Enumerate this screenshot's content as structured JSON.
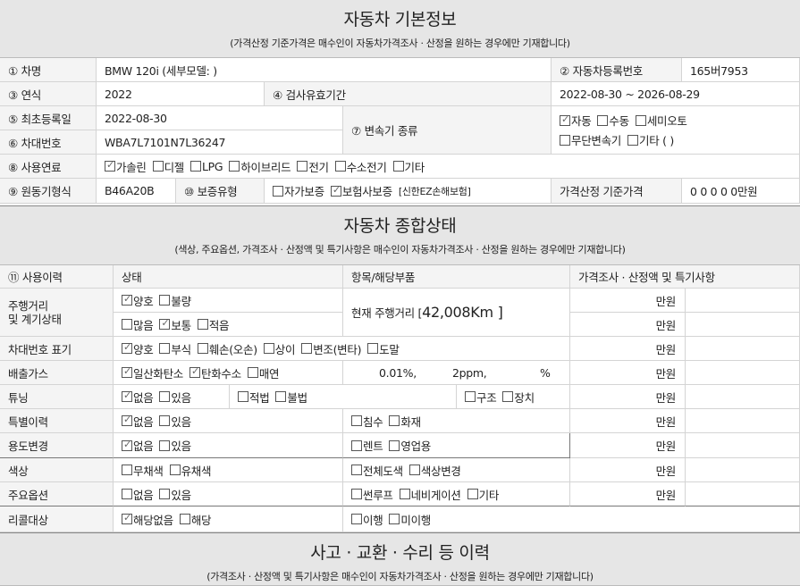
{
  "basic": {
    "title": "자동차 기본정보",
    "subtitle": "(가격산정 기준가격은 매수인이 자동차가격조사 · 산정을 원하는 경우에만 기재합니다)",
    "car_name_label": "① 차명",
    "car_name": "BMW 120i (세부모델: )",
    "reg_no_label": "② 자동차등록번호",
    "reg_no": "165버7953",
    "year_label": "③ 연식",
    "year": "2022",
    "inspect_label": "④ 검사유효기간",
    "inspect": "2022-08-30 ~ 2026-08-29",
    "first_reg_label": "⑤ 최초등록일",
    "first_reg": "2022-08-30",
    "vin_label": "⑥ 차대번호",
    "vin": "WBA7L7101N7L36247",
    "trans_label": "⑦ 변속기 종류",
    "trans1": [
      {
        "label": "자동",
        "checked": true
      },
      {
        "label": "수동",
        "checked": false
      },
      {
        "label": "세미오토",
        "checked": false
      }
    ],
    "trans2": [
      {
        "label": "무단변속기",
        "checked": false
      },
      {
        "label": "기타 (        )",
        "checked": false
      }
    ],
    "fuel_label": "⑧ 사용연료",
    "fuel": [
      {
        "label": "가솔린",
        "checked": true
      },
      {
        "label": "디젤",
        "checked": false
      },
      {
        "label": "LPG",
        "checked": false
      },
      {
        "label": "하이브리드",
        "checked": false
      },
      {
        "label": "전기",
        "checked": false
      },
      {
        "label": "수소전기",
        "checked": false
      },
      {
        "label": "기타",
        "checked": false
      }
    ],
    "engine_label": "⑨ 원동기형식",
    "engine": "B46A20B",
    "warranty_label": "⑩ 보증유형",
    "warranty": [
      {
        "label": "자가보증",
        "checked": false
      },
      {
        "label": "보험사보증",
        "checked": true
      }
    ],
    "insurer": "[신한EZ손해보험]",
    "price_label": "가격산정 기준가격",
    "price": "0 0 0 0 0만원"
  },
  "status": {
    "title": "자동차 종합상태",
    "subtitle": "(색상, 주요옵션, 가격조사 · 산정액 및 특기사항은 매수인이 자동차가격조사 · 산정을 원하는 경우에만 기재합니다)",
    "headers": [
      "⑪ 사용이력",
      "상태",
      "항목/해당부품",
      "가격조사 · 산정액 및 특기사항"
    ],
    "unit": "만원",
    "mileage_label": "주행거리\n및 계기상태",
    "mileage1": [
      {
        "label": "양호",
        "checked": true
      },
      {
        "label": "불량",
        "checked": false
      }
    ],
    "mileage2": [
      {
        "label": "많음",
        "checked": false
      },
      {
        "label": "보통",
        "checked": true
      },
      {
        "label": "적음",
        "checked": false
      }
    ],
    "mileage_text": "현재 주행거리 [ ",
    "mileage_value": "42,008Km ]",
    "vin_mark_label": "차대번호 표기",
    "vin_mark": [
      {
        "label": "양호",
        "checked": true
      },
      {
        "label": "부식",
        "checked": false
      },
      {
        "label": "훼손(오손)",
        "checked": false
      },
      {
        "label": "상이",
        "checked": false
      },
      {
        "label": "변조(변타)",
        "checked": false
      },
      {
        "label": "도말",
        "checked": false
      }
    ],
    "emission_label": "배출가스",
    "emission": [
      {
        "label": "일산화탄소",
        "checked": true
      },
      {
        "label": "탄화수소",
        "checked": true
      },
      {
        "label": "매연",
        "checked": false
      }
    ],
    "emission_values": [
      "0.01%,",
      "2ppm,",
      "%"
    ],
    "tuning_label": "튜닝",
    "tuning": [
      {
        "label": "없음",
        "checked": true
      },
      {
        "label": "있음",
        "checked": false
      }
    ],
    "tuning_legal": [
      {
        "label": "적법",
        "checked": false
      },
      {
        "label": "불법",
        "checked": false
      }
    ],
    "tuning_type": [
      {
        "label": "구조",
        "checked": false
      },
      {
        "label": "장치",
        "checked": false
      }
    ],
    "special_label": "특별이력",
    "special": [
      {
        "label": "없음",
        "checked": true
      },
      {
        "label": "있음",
        "checked": false
      }
    ],
    "special_items": [
      {
        "label": "침수",
        "checked": false
      },
      {
        "label": "화재",
        "checked": false
      }
    ],
    "usage_label": "용도변경",
    "usage": [
      {
        "label": "없음",
        "checked": true
      },
      {
        "label": "있음",
        "checked": false
      }
    ],
    "usage_items": [
      {
        "label": "렌트",
        "checked": false
      },
      {
        "label": "영업용",
        "checked": false
      }
    ],
    "color_label": "색상",
    "color": [
      {
        "label": "무채색",
        "checked": false
      },
      {
        "label": "유채색",
        "checked": false
      }
    ],
    "color_items": [
      {
        "label": "전체도색",
        "checked": false
      },
      {
        "label": "색상변경",
        "checked": false
      }
    ],
    "options_label": "주요옵션",
    "options": [
      {
        "label": "없음",
        "checked": false
      },
      {
        "label": "있음",
        "checked": false
      }
    ],
    "options_items": [
      {
        "label": "썬루프",
        "checked": false
      },
      {
        "label": "네비게이션",
        "checked": false
      },
      {
        "label": "기타",
        "checked": false
      }
    ],
    "recall_label": "리콜대상",
    "recall": [
      {
        "label": "해당없음",
        "checked": true
      },
      {
        "label": "해당",
        "checked": false
      }
    ],
    "recall_items": [
      {
        "label": "이행",
        "checked": false
      },
      {
        "label": "미이행",
        "checked": false
      }
    ]
  },
  "accident": {
    "title": "사고 · 교환 · 수리 등 이력",
    "subtitle": "(가격조사 · 산정액 및 특기사항은 매수인이 자동차가격조사 · 산정을 원하는 경우에만 기재합니다)"
  }
}
